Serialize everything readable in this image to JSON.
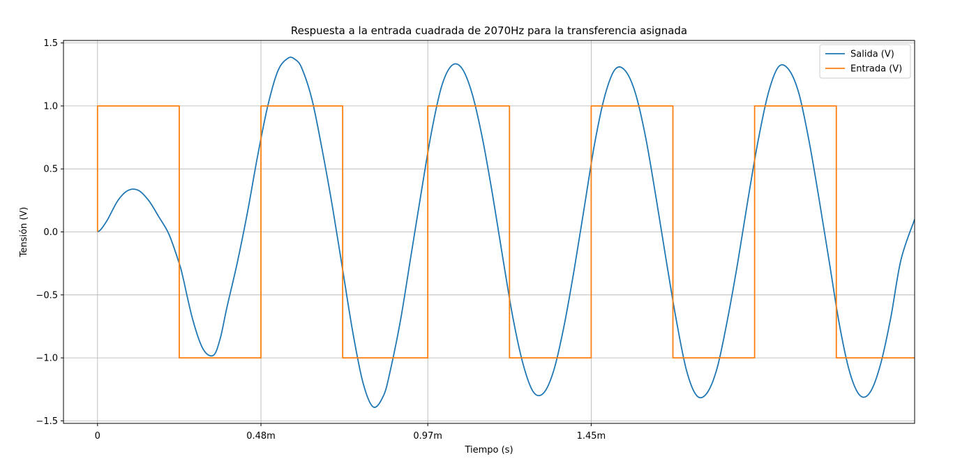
{
  "chart_data": {
    "type": "line",
    "title": "Respuesta a la entrada cuadrada de 2070Hz para la transferencia asignada",
    "xlabel": "Tiempo (s)",
    "ylabel": "Tensión (V)",
    "frequency_hz": 2070,
    "xlim": [
      -0.0001,
      0.0024
    ],
    "ylim": [
      -1.52,
      1.52
    ],
    "x_ticks": [
      {
        "value": 0,
        "label": "0"
      },
      {
        "value": 0.00048,
        "label": "0.48m"
      },
      {
        "value": 0.00097,
        "label": "0.97m"
      },
      {
        "value": 0.00145,
        "label": "1.45m"
      }
    ],
    "y_ticks": [
      {
        "value": 1.5,
        "label": "1.5"
      },
      {
        "value": 1.0,
        "label": "1.0"
      },
      {
        "value": 0.5,
        "label": "0.5"
      },
      {
        "value": 0.0,
        "label": "0.0"
      },
      {
        "value": -0.5,
        "label": "−0.5"
      },
      {
        "value": -1.0,
        "label": "−1.0"
      },
      {
        "value": -1.5,
        "label": "−1.5"
      }
    ],
    "grid": true,
    "legend_position": "top-right",
    "series": [
      {
        "name": "Salida (V)",
        "color": "#1f77b4",
        "x": [
          0,
          1e-05,
          3e-05,
          6e-05,
          9e-05,
          0.00012,
          0.00015,
          0.00018,
          0.00021,
          0.00024,
          0.00025,
          0.00028,
          0.00031,
          0.00034,
          0.00036,
          0.00038,
          0.00041,
          0.00044,
          0.00047,
          0.0005,
          0.00053,
          0.00056,
          0.00058,
          0.0006,
          0.00063,
          0.00066,
          0.00069,
          0.00072,
          0.00075,
          0.00078,
          0.00081,
          0.00084,
          0.00086,
          0.00089,
          0.00092,
          0.00095,
          0.00098,
          0.00101,
          0.00104,
          0.00107,
          0.0011,
          0.00113,
          0.00116,
          0.00119,
          0.00122,
          0.00125,
          0.00128,
          0.00131,
          0.00134,
          0.00137,
          0.0014,
          0.00143,
          0.00146,
          0.00149,
          0.00152,
          0.00155,
          0.00158,
          0.00161,
          0.00164,
          0.00167,
          0.0017,
          0.00173,
          0.00176,
          0.00179,
          0.00182,
          0.00185,
          0.00188,
          0.00191,
          0.00194,
          0.00197,
          0.002,
          0.00203,
          0.00206,
          0.00209,
          0.00212,
          0.00215,
          0.00218,
          0.00221,
          0.00224,
          0.00227,
          0.0023,
          0.00233,
          0.00236,
          0.0024
        ],
        "values": [
          0,
          0.02,
          0.1,
          0.25,
          0.33,
          0.33,
          0.25,
          0.12,
          -0.02,
          -0.25,
          -0.35,
          -0.7,
          -0.93,
          -0.98,
          -0.85,
          -0.6,
          -0.25,
          0.15,
          0.6,
          1.0,
          1.28,
          1.38,
          1.37,
          1.3,
          1.05,
          0.65,
          0.2,
          -0.3,
          -0.8,
          -1.2,
          -1.39,
          -1.3,
          -1.1,
          -0.7,
          -0.2,
          0.3,
          0.78,
          1.15,
          1.32,
          1.3,
          1.1,
          0.75,
          0.3,
          -0.2,
          -0.68,
          -1.05,
          -1.27,
          -1.28,
          -1.1,
          -0.75,
          -0.3,
          0.2,
          0.7,
          1.08,
          1.29,
          1.28,
          1.1,
          0.75,
          0.28,
          -0.22,
          -0.7,
          -1.1,
          -1.3,
          -1.28,
          -1.08,
          -0.7,
          -0.25,
          0.25,
          0.72,
          1.1,
          1.31,
          1.29,
          1.1,
          0.72,
          0.25,
          -0.25,
          -0.75,
          -1.12,
          -1.3,
          -1.27,
          -1.05,
          -0.68,
          -0.22,
          0.1
        ]
      },
      {
        "name": "Entrada (V)",
        "color": "#ff7f0e",
        "step": true,
        "x": [
          0,
          0,
          0.00024,
          0.00024,
          0.00048,
          0.00048,
          0.00072,
          0.00072,
          0.00097,
          0.00097,
          0.00121,
          0.00121,
          0.00145,
          0.00145,
          0.00169,
          0.00169,
          0.00193,
          0.00193,
          0.00217,
          0.00217,
          0.0024
        ],
        "values": [
          0,
          1,
          1,
          -1,
          -1,
          1,
          1,
          -1,
          -1,
          1,
          1,
          -1,
          -1,
          1,
          1,
          -1,
          -1,
          1,
          1,
          -1,
          -1
        ]
      }
    ]
  }
}
